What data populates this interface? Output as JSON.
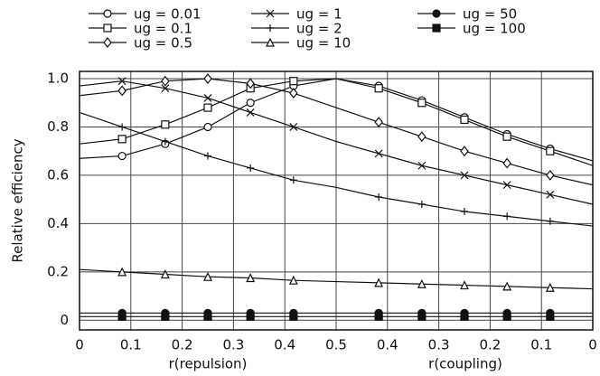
{
  "chart_data": {
    "type": "line",
    "xlabel": "r(repulsion)",
    "xlabel2": "r(coupling)",
    "ylabel": "Relative efficiency",
    "x": [
      0,
      0.083,
      0.167,
      0.25,
      0.333,
      0.417,
      0.5,
      0.583,
      0.667,
      0.75,
      0.833,
      0.917,
      1
    ],
    "series": [
      {
        "name": "ug = 0.01",
        "color": "#111111",
        "marker": "circle-open",
        "values": [
          0.67,
          0.68,
          0.73,
          0.8,
          0.9,
          0.97,
          1.0,
          0.97,
          0.91,
          0.84,
          0.77,
          0.71,
          0.66
        ]
      },
      {
        "name": "ug = 0.1",
        "color": "#111111",
        "marker": "square-open",
        "values": [
          0.73,
          0.75,
          0.81,
          0.88,
          0.96,
          0.99,
          1.0,
          0.96,
          0.9,
          0.83,
          0.76,
          0.7,
          0.64
        ]
      },
      {
        "name": "ug = 0.5",
        "color": "#111111",
        "marker": "diamond-open",
        "values": [
          0.93,
          0.95,
          0.99,
          1.0,
          0.98,
          0.94,
          0.88,
          0.82,
          0.76,
          0.7,
          0.65,
          0.6,
          0.56
        ]
      },
      {
        "name": "ug = 1",
        "color": "#111111",
        "marker": "x",
        "values": [
          0.97,
          0.99,
          0.96,
          0.92,
          0.86,
          0.8,
          0.74,
          0.69,
          0.64,
          0.6,
          0.56,
          0.52,
          0.48
        ]
      },
      {
        "name": "ug = 2",
        "color": "#111111",
        "marker": "plus",
        "values": [
          0.86,
          0.8,
          0.74,
          0.68,
          0.63,
          0.58,
          0.55,
          0.51,
          0.48,
          0.45,
          0.43,
          0.41,
          0.39
        ]
      },
      {
        "name": "ug = 10",
        "color": "#111111",
        "marker": "triangle-open",
        "values": [
          0.21,
          0.2,
          0.19,
          0.18,
          0.175,
          0.165,
          0.16,
          0.155,
          0.15,
          0.145,
          0.14,
          0.135,
          0.13
        ]
      },
      {
        "name": "ug = 50",
        "color": "#111111",
        "marker": "circle-filled",
        "values": [
          0.03,
          0.03,
          0.03,
          0.03,
          0.03,
          0.03,
          0.03,
          0.03,
          0.03,
          0.03,
          0.03,
          0.03,
          0.03
        ]
      },
      {
        "name": "ug = 100",
        "color": "#111111",
        "marker": "square-filled",
        "values": [
          0.015,
          0.015,
          0.015,
          0.015,
          0.015,
          0.015,
          0.015,
          0.015,
          0.015,
          0.015,
          0.015,
          0.015,
          0.015
        ]
      }
    ],
    "xlim": [
      0,
      1
    ],
    "xticks": [
      0,
      0.1,
      0.2,
      0.3,
      0.4,
      0.5,
      {
        "value": 0.6,
        "label": "0.4"
      },
      {
        "value": 0.7,
        "label": "0.3"
      },
      {
        "value": 0.8,
        "label": "0.2"
      },
      {
        "value": 0.9,
        "label": "0.1"
      },
      {
        "value": 1,
        "label": "0"
      }
    ],
    "ylim": [
      -0.04,
      1.03
    ],
    "yticks": [
      0,
      0.2,
      0.4,
      0.6,
      0.8,
      {
        "value": 1,
        "label": "1.0"
      }
    ],
    "grid": true
  }
}
